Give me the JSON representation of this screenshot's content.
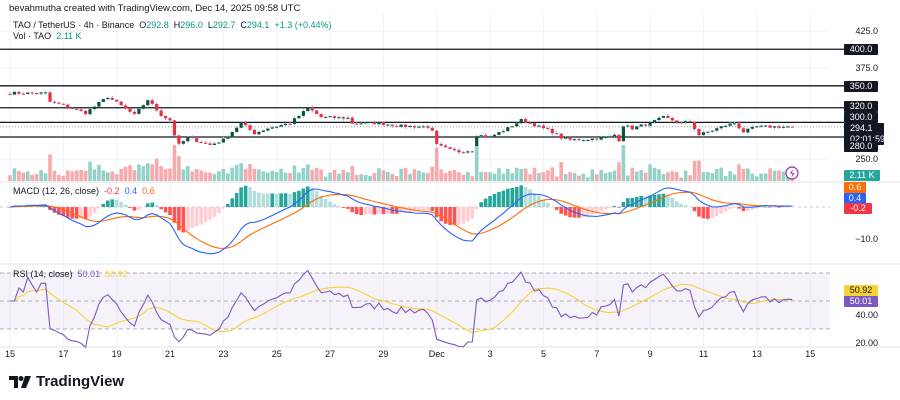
{
  "attribution": "bevahmutha created with TradingView.com, Dec 14, 2025 09:58 UTC",
  "legend": {
    "symbol": "TAO / TetherUS · 4h · Binance",
    "open_label": "O",
    "open": "292.8",
    "high_label": "H",
    "high": "296.0",
    "low_label": "L",
    "low": "292.7",
    "close_label": "C",
    "close": "294.1",
    "change": "+1.3 (+0.44%)",
    "volume_label": "Vol · TAO",
    "volume": "2.11 K"
  },
  "price_axis": {
    "plain_ticks": [
      "425.0",
      "375.0",
      "250.0"
    ],
    "level_lines": [
      "400.0",
      "350.0",
      "320.0",
      "300.0",
      "280.0"
    ],
    "current_price": "294.1",
    "countdown": "02:01:59",
    "volume_badge": "2.11 K"
  },
  "macd": {
    "title": "MACD (12, 26, close)",
    "hist": "-0.2",
    "macd": "0.4",
    "signal": "0.6",
    "axis_tick": "−10.0"
  },
  "rsi": {
    "title": "RSI (14, close)",
    "rsi": "50.01",
    "ma": "50.92",
    "axis_ticks": [
      "40.00",
      "20.00"
    ]
  },
  "time_axis": [
    "15",
    "17",
    "19",
    "21",
    "23",
    "25",
    "27",
    "29",
    "Dec",
    "3",
    "5",
    "7",
    "9",
    "11",
    "13",
    "15"
  ],
  "brand": "TradingView",
  "colors": {
    "up": "#089981",
    "down": "#f23645",
    "up_body": "#0e4f43",
    "down_body": "#e8313f",
    "vol_up": "#92d2c8",
    "vol_down": "#f7a9ab",
    "macd": "#2962ff",
    "signal": "#ff6d00",
    "rsi": "#7e57c2",
    "rsi_ma": "#f7d335",
    "level": "#131722"
  },
  "chart_data": {
    "type": "candlestick",
    "symbol": "TAO/USDT",
    "interval": "4h",
    "ylim": [
      240,
      430
    ],
    "levels": [
      400,
      350,
      320,
      300,
      280
    ],
    "last_close": 294.1,
    "close_path": [
      [
        "2025-11-15T00:00",
        340
      ],
      [
        "2025-11-16T08:00",
        340
      ],
      [
        "2025-11-16T12:00",
        328
      ],
      [
        "2025-11-16T20:00",
        325
      ],
      [
        "2025-11-17T20:00",
        313
      ],
      [
        "2025-11-18T16:00",
        335
      ],
      [
        "2025-11-19T16:00",
        310
      ],
      [
        "2025-11-20T04:00",
        331
      ],
      [
        "2025-11-20T16:00",
        310
      ],
      [
        "2025-11-21T00:00",
        303
      ],
      [
        "2025-11-21T04:00",
        283
      ],
      [
        "2025-11-21T08:00",
        269
      ],
      [
        "2025-11-21T16:00",
        279
      ],
      [
        "2025-11-22T12:00",
        269
      ],
      [
        "2025-11-23T00:00",
        276
      ],
      [
        "2025-11-23T16:00",
        299
      ],
      [
        "2025-11-24T04:00",
        285
      ],
      [
        "2025-11-24T16:00",
        292
      ],
      [
        "2025-11-25T12:00",
        299
      ],
      [
        "2025-11-26T00:00",
        314
      ],
      [
        "2025-11-26T04:00",
        320
      ],
      [
        "2025-11-26T16:00",
        307
      ],
      [
        "2025-11-27T16:00",
        306
      ],
      [
        "2025-11-27T20:00",
        299
      ],
      [
        "2025-11-28T20:00",
        299
      ],
      [
        "2025-11-29T16:00",
        295
      ],
      [
        "2025-11-30T16:00",
        294
      ],
      [
        "2025-11-30T20:00",
        287
      ],
      [
        "2025-12-01T00:00",
        269
      ],
      [
        "2025-12-01T12:00",
        262
      ],
      [
        "2025-12-01T20:00",
        260
      ],
      [
        "2025-12-02T08:00",
        262
      ],
      [
        "2025-12-02T12:00",
        283
      ],
      [
        "2025-12-03T00:00",
        280
      ],
      [
        "2025-12-03T16:00",
        292
      ],
      [
        "2025-12-04T04:00",
        303
      ],
      [
        "2025-12-04T12:00",
        299
      ],
      [
        "2025-12-04T20:00",
        294
      ],
      [
        "2025-12-05T08:00",
        287
      ],
      [
        "2025-12-05T16:00",
        279
      ],
      [
        "2025-12-06T00:00",
        276
      ],
      [
        "2025-12-06T16:00",
        277
      ],
      [
        "2025-12-07T12:00",
        280
      ],
      [
        "2025-12-07T16:00",
        283
      ],
      [
        "2025-12-07T20:00",
        276
      ],
      [
        "2025-12-08T00:00",
        296
      ],
      [
        "2025-12-08T08:00",
        292
      ],
      [
        "2025-12-09T00:00",
        299
      ],
      [
        "2025-12-09T12:00",
        307
      ],
      [
        "2025-12-10T04:00",
        299
      ],
      [
        "2025-12-10T12:00",
        301
      ],
      [
        "2025-12-10T20:00",
        283
      ],
      [
        "2025-12-11T04:00",
        287
      ],
      [
        "2025-12-11T20:00",
        296
      ],
      [
        "2025-12-12T04:00",
        299
      ],
      [
        "2025-12-12T12:00",
        287
      ],
      [
        "2025-12-13T00:00",
        294
      ],
      [
        "2025-12-14T00:00",
        294
      ],
      [
        "2025-12-14T08:00",
        294.1
      ]
    ],
    "indicators": {
      "volume": {
        "last": "2.11 K"
      },
      "macd": {
        "params": [
          12,
          26
        ],
        "source": "close",
        "hist": -0.2,
        "macd": 0.4,
        "signal": 0.6
      },
      "rsi": {
        "length": 14,
        "source": "close",
        "value": 50.01,
        "ma": 50.92,
        "bands": [
          70,
          50,
          30
        ]
      }
    }
  }
}
